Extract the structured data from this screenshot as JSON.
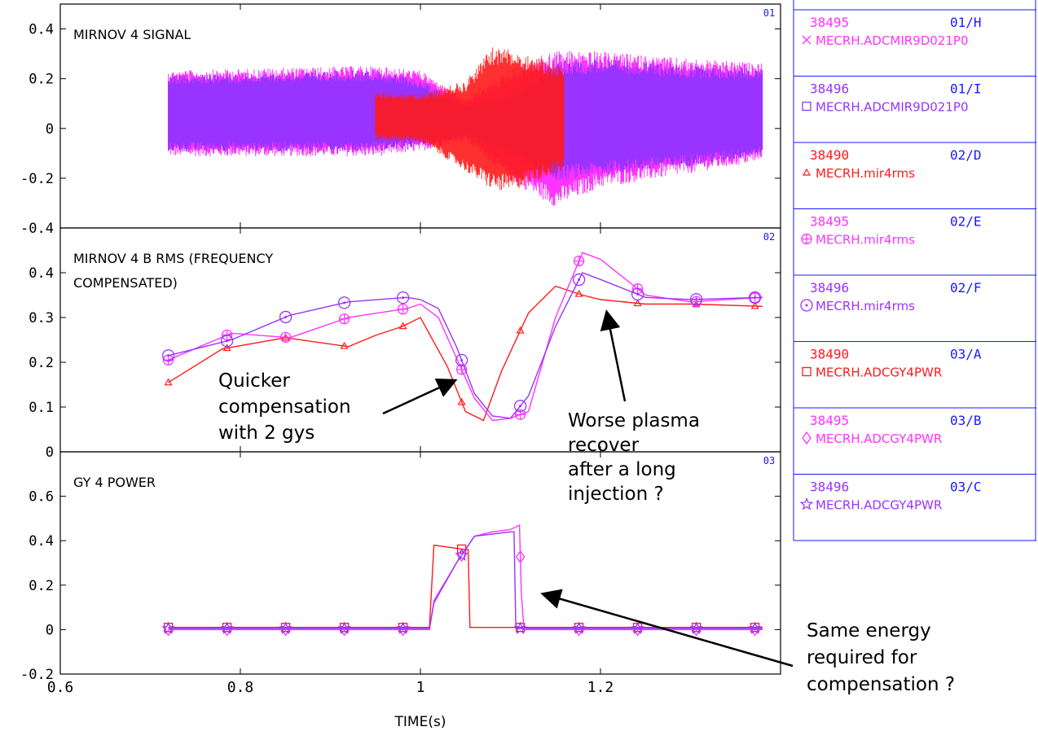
{
  "chart_data": [
    {
      "type": "line",
      "panel_id": "01",
      "title": "MIRNOV 4 SIGNAL",
      "xlim": [
        0.6,
        1.4
      ],
      "ylim": [
        -0.4,
        0.5
      ],
      "yticks": [
        "-0.4",
        "-0.2",
        "0",
        "0.2",
        "0.4"
      ],
      "ytick_values": [
        -0.4,
        -0.2,
        0,
        0.2,
        0.4
      ],
      "series": [
        {
          "label": "38495 01/H",
          "color": "#ff33ff",
          "style": "oscillation",
          "envelope_x": [
            0.72,
            0.95,
            1.0,
            1.05,
            1.1,
            1.15,
            1.2,
            1.3,
            1.38
          ],
          "envelope_upper": [
            0.24,
            0.26,
            0.24,
            0.12,
            0.25,
            0.33,
            0.32,
            0.29,
            0.27
          ],
          "envelope_lower": [
            -0.12,
            -0.12,
            -0.1,
            -0.05,
            -0.22,
            -0.33,
            -0.25,
            -0.19,
            -0.14
          ]
        },
        {
          "label": "38496 01/I",
          "color": "#9933ff",
          "style": "oscillation",
          "envelope_x": [
            0.72,
            0.95,
            1.0,
            1.05,
            1.1,
            1.15,
            1.2,
            1.3,
            1.38
          ],
          "envelope_upper": [
            0.22,
            0.24,
            0.2,
            0.1,
            0.15,
            0.28,
            0.29,
            0.26,
            0.25
          ],
          "envelope_lower": [
            -0.1,
            -0.1,
            -0.08,
            -0.04,
            -0.12,
            -0.22,
            -0.2,
            -0.16,
            -0.12
          ]
        },
        {
          "label": "38490",
          "color": "#ff1a1a",
          "style": "oscillation",
          "envelope_x": [
            0.95,
            1.0,
            1.05,
            1.08,
            1.1,
            1.13,
            1.16
          ],
          "envelope_upper": [
            0.15,
            0.14,
            0.2,
            0.34,
            0.33,
            0.3,
            0.25
          ],
          "envelope_lower": [
            -0.05,
            -0.06,
            -0.18,
            -0.26,
            -0.27,
            -0.22,
            -0.18
          ]
        }
      ]
    },
    {
      "type": "line",
      "panel_id": "02",
      "title": "MIRNOV 4 B RMS (FREQUENCY",
      "title_line2": "COMPENSATED)",
      "xlim": [
        0.6,
        1.4
      ],
      "ylim": [
        0,
        0.5
      ],
      "yticks": [
        "0",
        "0.1",
        "0.2",
        "0.3",
        "0.4"
      ],
      "ytick_values": [
        0,
        0.1,
        0.2,
        0.3,
        0.4
      ],
      "series": [
        {
          "label": "38490 02/D",
          "color": "#ff1a1a",
          "marker": "triangle",
          "x": [
            0.72,
            0.78,
            0.85,
            0.92,
            0.95,
            0.98,
            1.0,
            1.03,
            1.05,
            1.07,
            1.09,
            1.12,
            1.15,
            1.18,
            1.2,
            1.25,
            1.3,
            1.38
          ],
          "y": [
            0.155,
            0.23,
            0.255,
            0.235,
            0.26,
            0.28,
            0.3,
            0.19,
            0.09,
            0.07,
            0.18,
            0.31,
            0.37,
            0.35,
            0.34,
            0.33,
            0.33,
            0.325
          ]
        },
        {
          "label": "38495 02/E",
          "color": "#ff33ff",
          "marker": "circleplus",
          "x": [
            0.72,
            0.79,
            0.855,
            0.92,
            0.985,
            1.0,
            1.02,
            1.04,
            1.06,
            1.08,
            1.1,
            1.12,
            1.15,
            1.18,
            1.2,
            1.25,
            1.3,
            1.38
          ],
          "y": [
            0.205,
            0.265,
            0.255,
            0.3,
            0.32,
            0.33,
            0.3,
            0.21,
            0.12,
            0.07,
            0.075,
            0.09,
            0.3,
            0.445,
            0.43,
            0.35,
            0.335,
            0.345
          ]
        },
        {
          "label": "38496 02/F",
          "color": "#9933ff",
          "marker": "circledot",
          "x": [
            0.72,
            0.79,
            0.855,
            0.92,
            0.985,
            1.0,
            1.02,
            1.04,
            1.06,
            1.08,
            1.1,
            1.12,
            1.15,
            1.18,
            1.2,
            1.25,
            1.3,
            1.38
          ],
          "y": [
            0.215,
            0.25,
            0.305,
            0.335,
            0.345,
            0.34,
            0.32,
            0.235,
            0.13,
            0.08,
            0.075,
            0.125,
            0.28,
            0.4,
            0.385,
            0.345,
            0.34,
            0.345
          ]
        }
      ]
    },
    {
      "type": "line",
      "panel_id": "03",
      "title": "GY 4 POWER",
      "xlabel": "TIME(s)",
      "xlim": [
        0.6,
        1.4
      ],
      "ylim": [
        -0.2,
        0.8
      ],
      "yticks": [
        "-0.2",
        "0",
        "0.2",
        "0.4",
        "0.6"
      ],
      "ytick_values": [
        -0.2,
        0,
        0.2,
        0.4,
        0.6
      ],
      "xticks": [
        "0.6",
        "0.8",
        "1",
        "1.2"
      ],
      "xtick_values": [
        0.6,
        0.8,
        1.0,
        1.2
      ],
      "series": [
        {
          "label": "38490 03/A",
          "color": "#ff1a1a",
          "marker": "square",
          "x": [
            0.72,
            1.01,
            1.015,
            1.05,
            1.053,
            1.055,
            1.38
          ],
          "y": [
            0.01,
            0.01,
            0.38,
            0.36,
            0.36,
            0.01,
            0.01
          ]
        },
        {
          "label": "38495 03/B",
          "color": "#ff33ff",
          "marker": "diamond",
          "x": [
            0.72,
            1.01,
            1.015,
            1.04,
            1.06,
            1.08,
            1.1,
            1.11,
            1.112,
            1.115,
            1.38
          ],
          "y": [
            0.0,
            0.0,
            0.13,
            0.3,
            0.42,
            0.44,
            0.45,
            0.47,
            0.17,
            0.0,
            0.0
          ]
        },
        {
          "label": "38496 03/C",
          "color": "#9933ff",
          "marker": "star",
          "x": [
            0.72,
            1.01,
            1.015,
            1.04,
            1.06,
            1.08,
            1.1,
            1.104,
            1.106,
            1.38
          ],
          "y": [
            0.005,
            0.005,
            0.12,
            0.3,
            0.42,
            0.43,
            0.44,
            0.44,
            0.005,
            0.005
          ]
        }
      ]
    }
  ],
  "legend": [
    {
      "shot": "38495",
      "id": "01/H",
      "signal": "MECRH.ADCMIR9D021P0",
      "marker": "cross",
      "color": "#ff33ff"
    },
    {
      "shot": "38496",
      "id": "01/I",
      "signal": "MECRH.ADCMIR9D021P0",
      "marker": "square",
      "color": "#9933ff"
    },
    {
      "shot": "38490",
      "id": "02/D",
      "signal": "MECRH.mir4rms",
      "marker": "triangle",
      "color": "#ff1a1a"
    },
    {
      "shot": "38495",
      "id": "02/E",
      "signal": "MECRH.mir4rms",
      "marker": "circleplus",
      "color": "#ff33ff"
    },
    {
      "shot": "38496",
      "id": "02/F",
      "signal": "MECRH.mir4rms",
      "marker": "circledot",
      "color": "#9933ff"
    },
    {
      "shot": "38490",
      "id": "03/A",
      "signal": "MECRH.ADCGY4PWR",
      "marker": "square",
      "color": "#ff1a1a"
    },
    {
      "shot": "38495",
      "id": "03/B",
      "signal": "MECRH.ADCGY4PWR",
      "marker": "diamond",
      "color": "#ff33ff"
    },
    {
      "shot": "38496",
      "id": "03/C",
      "signal": "MECRH.ADCGY4PWR",
      "marker": "star",
      "color": "#9933ff"
    }
  ],
  "annotations": [
    {
      "lines": [
        "Quicker",
        "compensation",
        "with 2 gys"
      ]
    },
    {
      "lines": [
        "Worse plasma",
        "recover",
        "after a long",
        "injection ?"
      ]
    },
    {
      "lines": [
        "Same energy",
        "required for",
        "compensation ?"
      ]
    }
  ],
  "colors": {
    "frame": "#000000",
    "legend_border": "#1a1aff",
    "id_text": "#1a1aff"
  }
}
